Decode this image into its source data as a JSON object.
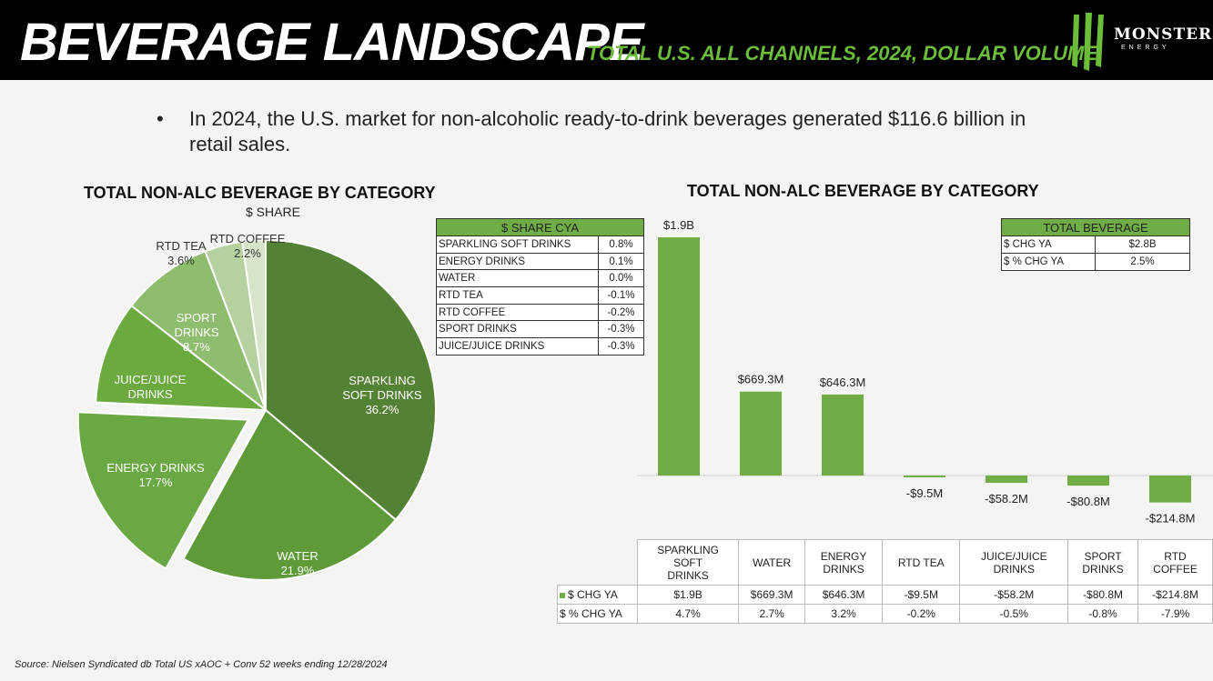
{
  "header": {
    "title": "BEVERAGE LANDSCAPE",
    "subtitle": "TOTAL U.S. ALL CHANNELS, 2024, DOLLAR VOLUME",
    "logo_text": "MONSTER",
    "logo_sub": "ENERGY"
  },
  "bullet": {
    "glyph": "•",
    "text": "In 2024, the U.S. market for non-alcoholic ready-to-drink beverages generated $116.6 billion in retail sales."
  },
  "colors": {
    "header_bg": "#000000",
    "accent": "#6cbd3a",
    "bar": "#70ad47",
    "pie": [
      "#548235",
      "#5e9a37",
      "#6aa843",
      "#6aaa3e",
      "#8fbd6e",
      "#b4d19f",
      "#d6e5ca"
    ]
  },
  "share_table": {
    "header": "$ SHARE CYA",
    "rows": [
      {
        "label": "SPARKLING SOFT DRINKS",
        "value": "0.8%"
      },
      {
        "label": "ENERGY DRINKS",
        "value": "0.1%"
      },
      {
        "label": "WATER",
        "value": "0.0%"
      },
      {
        "label": "RTD TEA",
        "value": "-0.1%"
      },
      {
        "label": "RTD COFFEE",
        "value": "-0.2%"
      },
      {
        "label": "SPORT DRINKS",
        "value": "-0.3%"
      },
      {
        "label": "JUICE/JUICE DRINKS",
        "value": "-0.3%"
      }
    ]
  },
  "total_table": {
    "header": "TOTAL BEVERAGE",
    "rows": [
      {
        "label": "$ CHG YA",
        "value": "$2.8B"
      },
      {
        "label": "$ % CHG YA",
        "value": "2.5%"
      }
    ]
  },
  "chart_data": [
    {
      "type": "pie",
      "title": "TOTAL NON-ALC BEVERAGE BY CATEGORY",
      "subtitle": "$ SHARE",
      "slices": [
        {
          "lines": [
            "SPARKLING",
            "SOFT DRINKS"
          ],
          "pct": "36.2%",
          "value": 36.2,
          "explode": false
        },
        {
          "lines": [
            "WATER"
          ],
          "pct": "21.9%",
          "value": 21.9,
          "explode": false
        },
        {
          "lines": [
            "ENERGY DRINKS"
          ],
          "pct": "17.7%",
          "value": 17.7,
          "explode": true
        },
        {
          "lines": [
            "JUICE/JUICE",
            "DRINKS"
          ],
          "pct": "9.8%",
          "value": 9.8,
          "explode": false
        },
        {
          "lines": [
            "SPORT",
            "DRINKS"
          ],
          "pct": "8.7%",
          "value": 8.7,
          "explode": false
        },
        {
          "lines": [
            "RTD TEA"
          ],
          "pct": "3.6%",
          "value": 3.6,
          "explode": false
        },
        {
          "lines": [
            "RTD COFFEE"
          ],
          "pct": "2.2%",
          "value": 2.2,
          "explode": false
        }
      ]
    },
    {
      "type": "bar",
      "title": "TOTAL NON-ALC BEVERAGE BY CATEGORY",
      "categories": [
        [
          "SPARKLING",
          "SOFT",
          "DRINKS"
        ],
        [
          "WATER"
        ],
        [
          "ENERGY",
          "DRINKS"
        ],
        [
          "RTD TEA"
        ],
        [
          "JUICE/JUICE",
          "DRINKS"
        ],
        [
          "SPORT",
          "DRINKS"
        ],
        [
          "RTD",
          "COFFEE"
        ]
      ],
      "series": [
        {
          "name": "$ CHG YA",
          "values": [
            1900,
            669.3,
            646.3,
            -9.5,
            -58.2,
            -80.8,
            -214.8
          ],
          "labels": [
            "$1.9B",
            "$669.3M",
            "$646.3M",
            "-$9.5M",
            "-$58.2M",
            "-$80.8M",
            "-$214.8M"
          ]
        },
        {
          "name": "$ % CHG YA",
          "labels": [
            "4.7%",
            "2.7%",
            "3.2%",
            "-0.2%",
            "-0.5%",
            "-0.8%",
            "-7.9%"
          ]
        }
      ],
      "unit": "$M"
    }
  ],
  "source": "Source: Nielsen Syndicated db Total US xAOC + Conv 52 weeks ending 12/28/2024"
}
